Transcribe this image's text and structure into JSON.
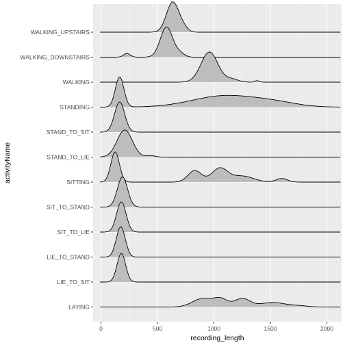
{
  "chart_data": {
    "type": "ridgeline",
    "xlabel": "recording_length",
    "ylabel": "activityName",
    "xlim": [
      -70,
      2130
    ],
    "x_ticks": [
      0,
      500,
      1000,
      1500,
      2000
    ],
    "x_minor_ticks": [
      250,
      750,
      1250,
      1750
    ],
    "grid": true,
    "fill_color": "#bdbdbd",
    "line_color": "#000000",
    "panel_color": "#ebebeb",
    "categories": [
      "WALKING_UPSTAIRS",
      "WALKING_DOWNSTAIRS",
      "WALKING",
      "STANDING",
      "STAND_TO_SIT",
      "STAND_TO_LIE",
      "SITTING",
      "SIT_TO_STAND",
      "SIT_TO_LIE",
      "LIE_TO_STAND",
      "LIE_TO_SIT",
      "LAYING"
    ],
    "series": [
      {
        "category": "WALKING_UPSTAIRS",
        "x_range": [
          -10,
          2120
        ],
        "peaks": [
          {
            "center": 635,
            "sd": 55,
            "height": 1.0
          },
          {
            "center": 730,
            "sd": 40,
            "height": 0.12
          }
        ]
      },
      {
        "category": "WALKING_DOWNSTAIRS",
        "x_range": [
          -10,
          2120
        ],
        "peaks": [
          {
            "center": 580,
            "sd": 55,
            "height": 1.0
          },
          {
            "center": 230,
            "sd": 30,
            "height": 0.12
          },
          {
            "center": 700,
            "sd": 40,
            "height": 0.12
          }
        ]
      },
      {
        "category": "WALKING",
        "x_range": [
          -10,
          2120
        ],
        "peaks": [
          {
            "center": 960,
            "sd": 75,
            "height": 1.0
          },
          {
            "center": 1160,
            "sd": 55,
            "height": 0.1
          },
          {
            "center": 1380,
            "sd": 20,
            "height": 0.05
          }
        ]
      },
      {
        "category": "STANDING",
        "x_range": [
          -10,
          2120
        ],
        "peaks": [
          {
            "center": 165,
            "sd": 38,
            "height": 1.0
          },
          {
            "center": 1100,
            "sd": 290,
            "height": 0.38
          },
          {
            "center": 1550,
            "sd": 200,
            "height": 0.12
          }
        ]
      },
      {
        "category": "STAND_TO_SIT",
        "x_range": [
          -10,
          2120
        ],
        "peaks": [
          {
            "center": 165,
            "sd": 45,
            "height": 1.0
          }
        ]
      },
      {
        "category": "STAND_TO_LIE",
        "x_range": [
          -10,
          2120
        ],
        "peaks": [
          {
            "center": 210,
            "sd": 68,
            "height": 0.9
          },
          {
            "center": 440,
            "sd": 40,
            "height": 0.05
          }
        ]
      },
      {
        "category": "SITTING",
        "x_range": [
          -10,
          2120
        ],
        "peaks": [
          {
            "center": 125,
            "sd": 38,
            "height": 1.0
          },
          {
            "center": 830,
            "sd": 60,
            "height": 0.38
          },
          {
            "center": 1050,
            "sd": 70,
            "height": 0.45
          },
          {
            "center": 1250,
            "sd": 100,
            "height": 0.2
          },
          {
            "center": 1600,
            "sd": 50,
            "height": 0.12
          }
        ]
      },
      {
        "category": "SIT_TO_STAND",
        "x_range": [
          -10,
          2120
        ],
        "peaks": [
          {
            "center": 190,
            "sd": 45,
            "height": 1.0
          }
        ]
      },
      {
        "category": "SIT_TO_LIE",
        "x_range": [
          -10,
          2120
        ],
        "peaks": [
          {
            "center": 180,
            "sd": 42,
            "height": 1.0
          }
        ]
      },
      {
        "category": "LIE_TO_STAND",
        "x_range": [
          -10,
          2120
        ],
        "peaks": [
          {
            "center": 175,
            "sd": 40,
            "height": 1.0
          }
        ]
      },
      {
        "category": "LIE_TO_SIT",
        "x_range": [
          -10,
          2120
        ],
        "peaks": [
          {
            "center": 180,
            "sd": 38,
            "height": 0.95
          }
        ]
      },
      {
        "category": "LAYING",
        "x_range": [
          -10,
          2120
        ],
        "peaks": [
          {
            "center": 900,
            "sd": 90,
            "height": 0.28
          },
          {
            "center": 1060,
            "sd": 60,
            "height": 0.25
          },
          {
            "center": 1250,
            "sd": 70,
            "height": 0.28
          },
          {
            "center": 1520,
            "sd": 110,
            "height": 0.15
          },
          {
            "center": 1750,
            "sd": 80,
            "height": 0.04
          }
        ]
      }
    ]
  }
}
